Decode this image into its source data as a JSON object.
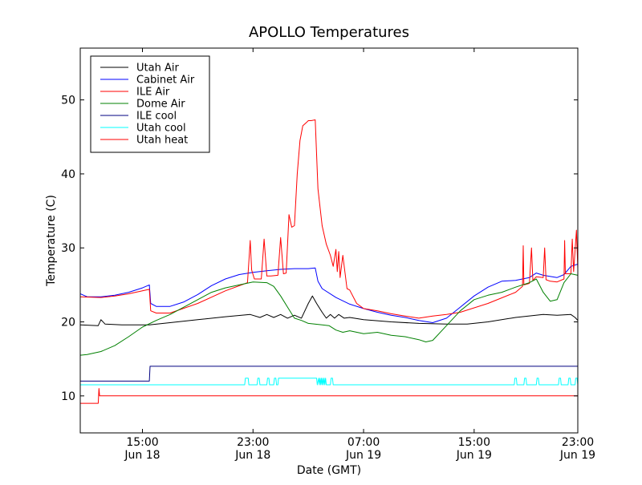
{
  "chart_data": {
    "type": "line",
    "title": "APOLLO Temperatures",
    "xlabel": "Date (GMT)",
    "ylabel": "Temperature (C)",
    "xlim": [
      10.5,
      46.5
    ],
    "ylim": [
      5,
      57
    ],
    "grid": false,
    "legend_position": "top-left",
    "yticks": [
      10,
      20,
      30,
      40,
      50
    ],
    "xticks": [
      {
        "x": 15,
        "top": "15:00",
        "bottom": "Jun 18"
      },
      {
        "x": 23,
        "top": "23:00",
        "bottom": "Jun 18"
      },
      {
        "x": 31,
        "top": "07:00",
        "bottom": "Jun 19"
      },
      {
        "x": 39,
        "top": "15:00",
        "bottom": "Jun 19"
      },
      {
        "x": 47,
        "top": "23:00",
        "bottom": "Jun 19"
      }
    ],
    "series": [
      {
        "name": "Utah Air",
        "color": "#000000",
        "x": [
          10.5,
          11.8,
          12.0,
          12.3,
          13.5,
          15.5,
          17.0,
          19.0,
          21.0,
          22.8,
          23.5,
          24.0,
          24.5,
          25.0,
          25.5,
          26.0,
          26.5,
          27.0,
          27.3,
          27.6,
          28.0,
          28.3,
          28.6,
          28.9,
          29.2,
          29.6,
          30.0,
          31.0,
          33.0,
          35.0,
          37.0,
          38.5,
          40.0,
          42.0,
          44.0,
          45.0,
          46.0,
          46.3,
          46.5
        ],
        "values": [
          19.6,
          19.5,
          20.3,
          19.7,
          19.6,
          19.6,
          19.9,
          20.3,
          20.7,
          21.0,
          20.6,
          21.0,
          20.6,
          21.0,
          20.5,
          20.9,
          20.5,
          22.5,
          23.5,
          22.5,
          21.3,
          20.5,
          21.0,
          20.5,
          21.0,
          20.5,
          20.6,
          20.3,
          20.0,
          19.8,
          19.7,
          19.7,
          20.0,
          20.6,
          21.0,
          20.9,
          21.0,
          20.6,
          20.2
        ]
      },
      {
        "name": "Cabinet Air",
        "color": "#0000ff",
        "x": [
          10.5,
          11.0,
          12.0,
          13.0,
          14.0,
          15.0,
          15.5,
          15.6,
          16.0,
          17.0,
          18.0,
          19.0,
          20.0,
          21.0,
          22.0,
          23.0,
          24.0,
          25.0,
          26.0,
          27.0,
          27.5,
          27.7,
          28.0,
          29.0,
          30.0,
          31.0,
          32.0,
          33.0,
          34.0,
          35.0,
          36.0,
          37.0,
          38.0,
          39.0,
          40.0,
          41.0,
          42.0,
          43.0,
          43.5,
          44.0,
          45.0,
          45.5,
          46.0,
          46.5
        ],
        "values": [
          23.8,
          23.4,
          23.4,
          23.6,
          24.0,
          24.6,
          25.0,
          22.5,
          22.1,
          22.1,
          22.7,
          23.7,
          24.9,
          25.8,
          26.4,
          26.7,
          26.9,
          27.1,
          27.2,
          27.2,
          27.3,
          25.5,
          24.5,
          23.3,
          22.4,
          21.8,
          21.3,
          20.9,
          20.6,
          20.2,
          19.9,
          20.5,
          22.0,
          23.5,
          24.7,
          25.5,
          25.6,
          26.0,
          26.6,
          26.3,
          26.0,
          26.4,
          27.5,
          27.8
        ]
      },
      {
        "name": "ILE Air",
        "color": "#ff0000",
        "x": [
          10.5,
          12.0,
          13.0,
          14.0,
          15.0,
          15.5,
          15.6,
          16.0,
          17.0,
          19.0,
          21.0,
          22.6,
          22.8,
          22.9,
          23.1,
          23.6,
          23.8,
          24.0,
          24.3,
          24.8,
          25.0,
          25.2,
          25.4,
          25.6,
          25.8,
          26.0,
          26.2,
          26.4,
          26.6,
          26.9,
          27.0,
          27.2,
          27.5,
          27.7,
          28.0,
          28.3,
          28.6,
          28.8,
          29.0,
          29.1,
          29.2,
          29.3,
          29.5,
          29.8,
          30.0,
          30.5,
          31.0,
          32.0,
          33.0,
          34.0,
          35.0,
          36.0,
          37.0,
          38.0,
          40.0,
          42.0,
          42.5,
          42.55,
          42.6,
          43.0,
          43.15,
          43.25,
          43.5,
          44.0,
          44.1,
          44.2,
          44.5,
          45.0,
          45.5,
          45.55,
          45.6,
          46.0,
          46.1,
          46.2,
          46.4,
          46.5
        ],
        "values": [
          23.4,
          23.3,
          23.5,
          23.8,
          24.2,
          24.4,
          21.5,
          21.2,
          21.2,
          22.5,
          24.2,
          25.3,
          31.0,
          27.0,
          25.8,
          25.8,
          31.2,
          26.2,
          26.2,
          26.3,
          31.4,
          26.5,
          26.6,
          34.5,
          32.8,
          33.0,
          40.0,
          44.5,
          46.5,
          47.0,
          47.2,
          47.2,
          47.3,
          38.0,
          33.0,
          30.5,
          29.0,
          27.5,
          29.8,
          26.8,
          29.5,
          26.0,
          29.0,
          24.5,
          24.3,
          22.5,
          21.8,
          21.5,
          21.1,
          20.8,
          20.5,
          20.8,
          21.0,
          21.3,
          22.5,
          24.0,
          24.8,
          30.3,
          25.0,
          25.2,
          30.0,
          25.6,
          26.1,
          26.0,
          30.0,
          25.7,
          25.5,
          25.4,
          25.8,
          31.0,
          26.5,
          26.5,
          31.2,
          26.8,
          32.4,
          27.2
        ]
      },
      {
        "name": "Dome Air",
        "color": "#008000",
        "x": [
          10.5,
          11.0,
          12.0,
          13.0,
          14.0,
          15.0,
          16.0,
          17.0,
          18.0,
          19.0,
          20.0,
          21.0,
          22.0,
          23.0,
          24.0,
          24.5,
          25.0,
          25.5,
          26.0,
          26.5,
          27.0,
          28.0,
          28.5,
          29.0,
          29.5,
          30.0,
          31.0,
          32.0,
          33.0,
          34.0,
          35.0,
          35.5,
          36.0,
          37.0,
          38.0,
          39.0,
          40.0,
          41.0,
          42.0,
          43.0,
          43.5,
          44.0,
          44.5,
          45.0,
          45.5,
          46.0,
          46.5
        ],
        "values": [
          15.5,
          15.6,
          16.0,
          16.8,
          18.0,
          19.3,
          20.2,
          21.0,
          22.0,
          23.0,
          24.0,
          24.6,
          25.0,
          25.4,
          25.3,
          24.8,
          23.5,
          22.0,
          20.5,
          20.2,
          19.8,
          19.6,
          19.5,
          18.9,
          18.6,
          18.8,
          18.4,
          18.6,
          18.2,
          18.0,
          17.6,
          17.3,
          17.5,
          19.5,
          21.5,
          23.0,
          23.6,
          24.0,
          24.7,
          25.3,
          25.8,
          24.0,
          22.8,
          23.0,
          25.3,
          26.5,
          26.3
        ]
      },
      {
        "name": "ILE cool",
        "color": "#000080",
        "x": [
          10.5,
          15.5,
          15.55,
          46.5
        ],
        "values": [
          12.0,
          12.0,
          14.0,
          14.0
        ]
      },
      {
        "name": "Utah cool",
        "color": "#00ffff",
        "x": [
          10.5,
          22.4,
          22.45,
          22.65,
          22.7,
          23.3,
          23.35,
          23.45,
          23.5,
          24.0,
          24.05,
          24.15,
          24.2,
          24.5,
          24.55,
          24.65,
          24.7,
          24.8,
          24.85,
          27.6,
          27.65,
          27.75,
          27.8,
          27.85,
          27.9,
          27.95,
          28.0,
          28.05,
          28.1,
          28.15,
          28.2,
          28.25,
          28.3,
          28.6,
          28.65,
          28.75,
          28.8,
          41.9,
          41.95,
          42.05,
          42.1,
          42.6,
          42.65,
          42.75,
          42.8,
          43.5,
          43.55,
          43.65,
          43.7,
          45.1,
          45.15,
          45.25,
          45.3,
          45.8,
          45.85,
          45.95,
          46.0,
          46.3,
          46.35,
          46.45,
          46.5
        ],
        "values": [
          11.5,
          11.5,
          12.4,
          12.4,
          11.5,
          11.5,
          12.4,
          12.4,
          11.5,
          11.5,
          12.4,
          12.4,
          11.5,
          11.5,
          12.4,
          12.4,
          11.5,
          11.5,
          12.4,
          12.4,
          11.5,
          12.4,
          11.5,
          12.4,
          11.5,
          12.4,
          11.5,
          12.4,
          11.5,
          12.4,
          11.5,
          12.4,
          11.5,
          11.5,
          12.4,
          12.4,
          11.5,
          11.5,
          12.4,
          12.4,
          11.5,
          11.5,
          12.4,
          12.4,
          11.5,
          11.5,
          12.4,
          12.4,
          11.5,
          11.5,
          12.4,
          12.4,
          11.5,
          11.5,
          12.4,
          12.4,
          11.5,
          11.5,
          12.4,
          12.4,
          11.5
        ]
      },
      {
        "name": "Utah heat",
        "color": "#ff0000",
        "x": [
          10.5,
          11.8,
          11.85,
          11.9,
          11.95,
          46.5
        ],
        "values": [
          9.0,
          9.0,
          11.0,
          10.0,
          10.0,
          10.0
        ]
      }
    ]
  }
}
